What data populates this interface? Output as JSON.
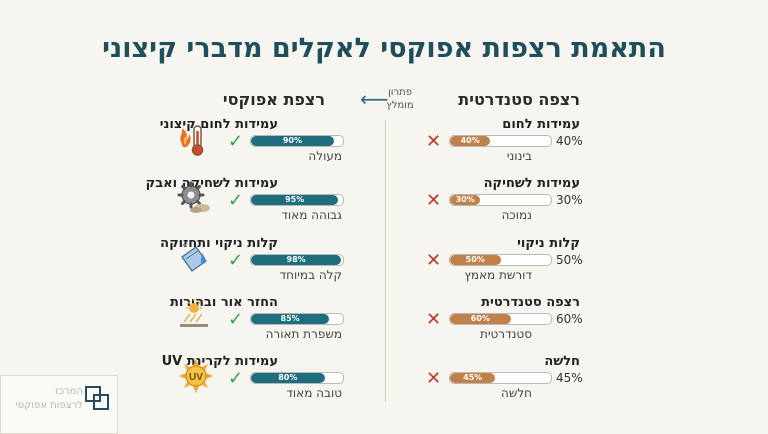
{
  "title": "התאמת רצפות אפוקסי לאקלים מדברי קיצוני",
  "headers": {
    "epoxy": "רצפת אפוקסי",
    "standard": "רצפה סטנדרטית",
    "recommended_line1": "פתרון",
    "recommended_line2": "מומלץ"
  },
  "epoxy_rows": [
    {
      "label": "עמידות לחום קיצוני",
      "value": 90,
      "value_label": "90%",
      "rating": "מעולה",
      "icon": "thermometer-flame-icon",
      "mark": "✓"
    },
    {
      "label": "עמידות לשחיקה ואבק",
      "value": 95,
      "value_label": "95%",
      "rating": "גבוהה מאוד",
      "icon": "gear-dust-icon",
      "mark": "✓"
    },
    {
      "label": "קלות ניקוי ותחזוקה",
      "value": 98,
      "value_label": "98%",
      "rating": "קלה במיוחד",
      "icon": "cleaning-cloth-icon",
      "mark": "✓"
    },
    {
      "label": "החזר אור ובהירות",
      "value": 85,
      "value_label": "85%",
      "rating": "משפרת תאורה",
      "icon": "sun-reflection-icon",
      "mark": "✓"
    },
    {
      "label": "עמידות לקרינת UV",
      "value": 80,
      "value_label": "80%",
      "rating": "טובה מאוד",
      "icon": "uv-sun-icon",
      "mark": "✓"
    }
  ],
  "standard_rows": [
    {
      "label": "עמידות לחום",
      "value": 40,
      "value_label": "40%",
      "pct_text": "40%",
      "rating": "בינוני",
      "mark": "✕"
    },
    {
      "label": "עמידות לשחיקה",
      "value": 30,
      "value_label": "30%",
      "pct_text": "30%",
      "rating": "נמוכה",
      "mark": "✕"
    },
    {
      "label": "קלות ניקוי",
      "value": 50,
      "value_label": "50%",
      "pct_text": "50%",
      "rating": "דורשת מאמץ",
      "mark": "✕"
    },
    {
      "label": "רצפה סטנדרטית",
      "value": 60,
      "value_label": "60%",
      "pct_text": "60%",
      "rating": "סטנדרטית",
      "mark": "✕"
    },
    {
      "label": "חלשה",
      "value": 45,
      "value_label": "45%",
      "pct_text": "45%",
      "rating": "חלשה",
      "mark": "✕"
    }
  ],
  "logo": {
    "line1": "המרכז",
    "line2": "לרצפות אפוקסי"
  },
  "colors": {
    "epoxy_bar": "#1e6e7d",
    "standard_bar": "#bf8149",
    "check": "#2ea44f",
    "cross": "#c0392b",
    "title": "#1f4e5c"
  }
}
